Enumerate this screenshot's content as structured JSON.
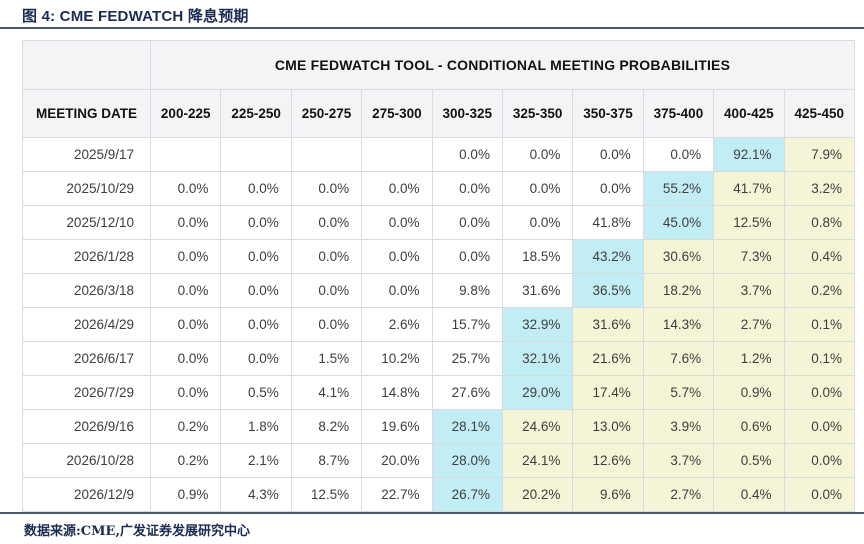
{
  "page": {
    "title": "图 4: CME FEDWATCH 降息预期",
    "footer_source": "数据来源:CME,广发证券发展研究中心"
  },
  "table": {
    "group_header": "CME FEDWATCH TOOL - CONDITIONAL MEETING PROBABILITIES",
    "date_header": "MEETING DATE",
    "rate_headers": [
      "200-225",
      "225-250",
      "250-275",
      "275-300",
      "300-325",
      "325-350",
      "350-375",
      "375-400",
      "400-425",
      "425-450"
    ],
    "rows": [
      {
        "date": "2025/9/17",
        "cells": [
          "",
          "",
          "",
          "",
          "0.0%",
          "0.0%",
          "0.0%",
          "0.0%",
          "92.1%",
          "7.9%"
        ],
        "styles": [
          "n",
          "n",
          "n",
          "n",
          "n",
          "n",
          "n",
          "n",
          "c",
          "y"
        ]
      },
      {
        "date": "2025/10/29",
        "cells": [
          "0.0%",
          "0.0%",
          "0.0%",
          "0.0%",
          "0.0%",
          "0.0%",
          "0.0%",
          "55.2%",
          "41.7%",
          "3.2%"
        ],
        "styles": [
          "n",
          "n",
          "n",
          "n",
          "n",
          "n",
          "n",
          "c",
          "y",
          "y"
        ]
      },
      {
        "date": "2025/12/10",
        "cells": [
          "0.0%",
          "0.0%",
          "0.0%",
          "0.0%",
          "0.0%",
          "0.0%",
          "41.8%",
          "45.0%",
          "12.5%",
          "0.8%"
        ],
        "styles": [
          "n",
          "n",
          "n",
          "n",
          "n",
          "n",
          "n",
          "c",
          "y",
          "y"
        ]
      },
      {
        "date": "2026/1/28",
        "cells": [
          "0.0%",
          "0.0%",
          "0.0%",
          "0.0%",
          "0.0%",
          "18.5%",
          "43.2%",
          "30.6%",
          "7.3%",
          "0.4%"
        ],
        "styles": [
          "n",
          "n",
          "n",
          "n",
          "n",
          "n",
          "c",
          "y",
          "y",
          "y"
        ]
      },
      {
        "date": "2026/3/18",
        "cells": [
          "0.0%",
          "0.0%",
          "0.0%",
          "0.0%",
          "9.8%",
          "31.6%",
          "36.5%",
          "18.2%",
          "3.7%",
          "0.2%"
        ],
        "styles": [
          "n",
          "n",
          "n",
          "n",
          "n",
          "n",
          "c",
          "y",
          "y",
          "y"
        ]
      },
      {
        "date": "2026/4/29",
        "cells": [
          "0.0%",
          "0.0%",
          "0.0%",
          "2.6%",
          "15.7%",
          "32.9%",
          "31.6%",
          "14.3%",
          "2.7%",
          "0.1%"
        ],
        "styles": [
          "n",
          "n",
          "n",
          "n",
          "n",
          "c",
          "y",
          "y",
          "y",
          "y"
        ]
      },
      {
        "date": "2026/6/17",
        "cells": [
          "0.0%",
          "0.0%",
          "1.5%",
          "10.2%",
          "25.7%",
          "32.1%",
          "21.6%",
          "7.6%",
          "1.2%",
          "0.1%"
        ],
        "styles": [
          "n",
          "n",
          "n",
          "n",
          "n",
          "c",
          "y",
          "y",
          "y",
          "y"
        ]
      },
      {
        "date": "2026/7/29",
        "cells": [
          "0.0%",
          "0.5%",
          "4.1%",
          "14.8%",
          "27.6%",
          "29.0%",
          "17.4%",
          "5.7%",
          "0.9%",
          "0.0%"
        ],
        "styles": [
          "n",
          "n",
          "n",
          "n",
          "n",
          "c",
          "y",
          "y",
          "y",
          "y"
        ]
      },
      {
        "date": "2026/9/16",
        "cells": [
          "0.2%",
          "1.8%",
          "8.2%",
          "19.6%",
          "28.1%",
          "24.6%",
          "13.0%",
          "3.9%",
          "0.6%",
          "0.0%"
        ],
        "styles": [
          "n",
          "n",
          "n",
          "n",
          "c",
          "y",
          "y",
          "y",
          "y",
          "y"
        ]
      },
      {
        "date": "2026/10/28",
        "cells": [
          "0.2%",
          "2.1%",
          "8.7%",
          "20.0%",
          "28.0%",
          "24.1%",
          "12.6%",
          "3.7%",
          "0.5%",
          "0.0%"
        ],
        "styles": [
          "n",
          "n",
          "n",
          "n",
          "c",
          "y",
          "y",
          "y",
          "y",
          "y"
        ]
      },
      {
        "date": "2026/12/9",
        "cells": [
          "0.9%",
          "4.3%",
          "12.5%",
          "22.7%",
          "26.7%",
          "20.2%",
          "9.6%",
          "2.7%",
          "0.4%",
          "0.0%"
        ],
        "styles": [
          "n",
          "n",
          "n",
          "n",
          "c",
          "y",
          "y",
          "y",
          "y",
          "y"
        ]
      }
    ]
  },
  "colors": {
    "navy": "#1b2c53",
    "rule": "#4e5a64",
    "grid": "#d9dade",
    "header_bg": "#f4f4f6",
    "cell_text": "#3d3d3d",
    "highlight_cyan": "#c3edf4",
    "highlight_yellow": "#f6f4d6"
  }
}
